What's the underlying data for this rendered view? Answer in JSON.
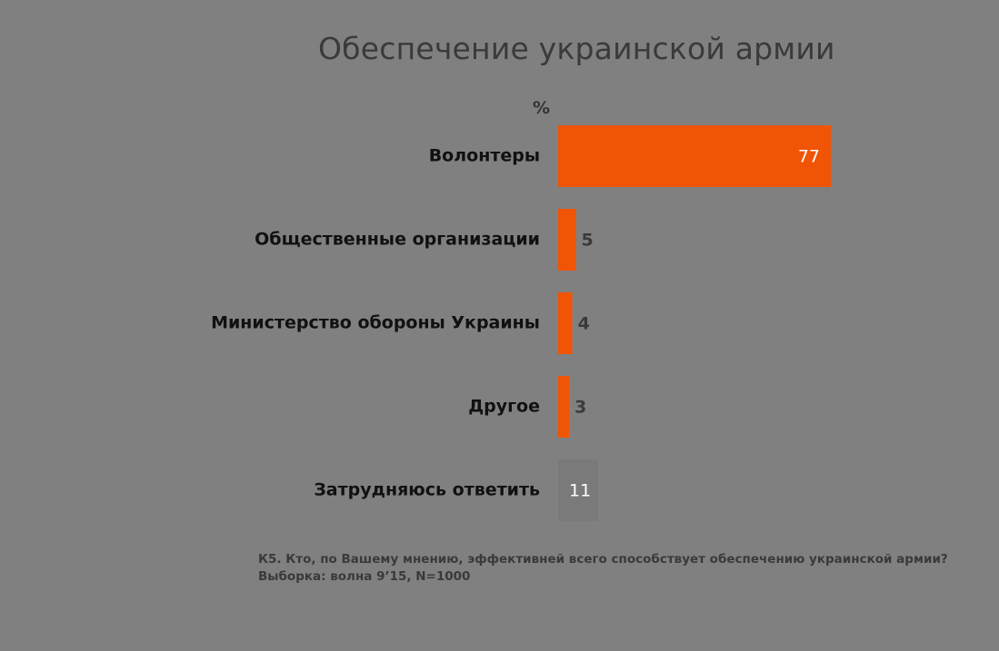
{
  "chart_data": {
    "type": "bar",
    "orientation": "horizontal",
    "title": "Обеспечение украинской армии",
    "unit": "%",
    "categories": [
      "Волонтеры",
      "Общественные организации",
      "Министерство обороны Украины",
      "Другое",
      "Затрудняюсь ответить"
    ],
    "values": [
      77,
      5,
      4,
      3,
      11
    ],
    "bar_colors": [
      "#f05405",
      "#f05405",
      "#f05405",
      "#f05405",
      "#7a7a7a"
    ],
    "value_label_colors": [
      "#ffffff",
      "#3a3a3a",
      "#3a3a3a",
      "#3a3a3a",
      "#ffffff"
    ],
    "xlim": [
      0,
      77
    ],
    "grid": false,
    "legend": "none"
  },
  "footnote": {
    "line1": "К5. Кто, по Вашему мнению, эффективней всего способствует обеспечению украинской армии?",
    "line2": "Выборка: волна 9’15, N=1000"
  },
  "colors": {
    "background": "#808080",
    "accent": "#f05405",
    "dont_know": "#7a7a7a"
  }
}
